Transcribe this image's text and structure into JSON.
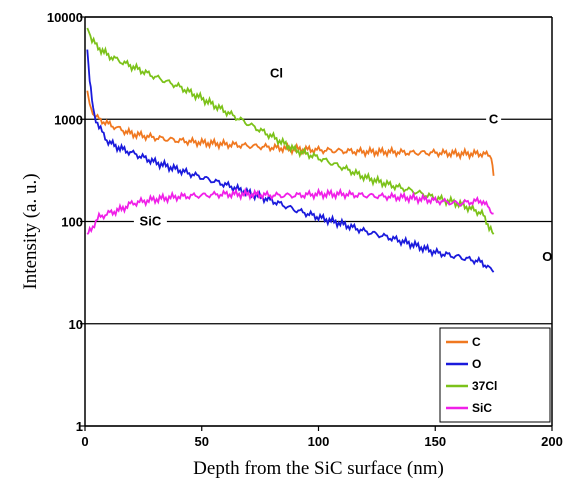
{
  "chart_data": {
    "type": "line",
    "xlabel": "Depth from the SiC surface (nm)",
    "ylabel": "Intensity (a. u.)",
    "xlim": [
      0,
      200
    ],
    "ylim": [
      1,
      10000
    ],
    "yscale": "log",
    "x_ticks": [
      "0",
      "50",
      "100",
      "150",
      "200"
    ],
    "y_ticks": [
      "1",
      "10",
      "100",
      "1000",
      "10000"
    ],
    "grid": "horizontal",
    "legend_position": "bottom-right",
    "series": [
      {
        "name": "C",
        "color": "#f07820",
        "x": [
          1,
          2,
          4,
          6,
          10,
          15,
          20,
          30,
          40,
          50,
          60,
          70,
          80,
          90,
          100,
          110,
          120,
          130,
          140,
          150,
          160,
          170,
          174,
          175
        ],
        "y": [
          1900,
          1400,
          1100,
          1000,
          900,
          800,
          720,
          660,
          620,
          590,
          570,
          550,
          530,
          510,
          500,
          490,
          480,
          480,
          470,
          470,
          460,
          460,
          440,
          280
        ]
      },
      {
        "name": "O",
        "color": "#1a1adc",
        "x": [
          1,
          2,
          3,
          4,
          6,
          8,
          10,
          15,
          20,
          30,
          40,
          50,
          60,
          70,
          80,
          90,
          100,
          110,
          120,
          130,
          140,
          150,
          160,
          170,
          175
        ],
        "y": [
          4800,
          2400,
          1500,
          1100,
          850,
          700,
          600,
          520,
          470,
          380,
          320,
          270,
          230,
          190,
          160,
          130,
          110,
          95,
          80,
          70,
          60,
          50,
          45,
          40,
          32
        ]
      },
      {
        "name": "37Cl",
        "color": "#7cc21a",
        "x": [
          1,
          3,
          5,
          10,
          15,
          20,
          30,
          40,
          50,
          60,
          70,
          80,
          90,
          100,
          110,
          120,
          130,
          140,
          150,
          160,
          170,
          175
        ],
        "y": [
          7800,
          6000,
          5200,
          4200,
          3700,
          3300,
          2600,
          2100,
          1600,
          1200,
          900,
          680,
          500,
          420,
          340,
          270,
          230,
          200,
          170,
          150,
          120,
          75
        ]
      },
      {
        "name": "SiC",
        "color": "#f020e8",
        "x": [
          1,
          2,
          4,
          6,
          10,
          15,
          20,
          30,
          40,
          50,
          60,
          70,
          80,
          90,
          100,
          110,
          120,
          130,
          140,
          150,
          160,
          170,
          175
        ],
        "y": [
          75,
          80,
          95,
          110,
          120,
          130,
          150,
          165,
          175,
          180,
          185,
          185,
          180,
          180,
          185,
          185,
          180,
          175,
          170,
          160,
          150,
          160,
          120
        ]
      }
    ],
    "annotations": [
      {
        "text": "Cl",
        "x": 82,
        "y": 2800
      },
      {
        "text": "C",
        "x": 175,
        "y": 1000
      },
      {
        "text": "SiC",
        "x": 28,
        "y": 100
      },
      {
        "text": "O",
        "x": 198,
        "y": 45
      }
    ]
  }
}
